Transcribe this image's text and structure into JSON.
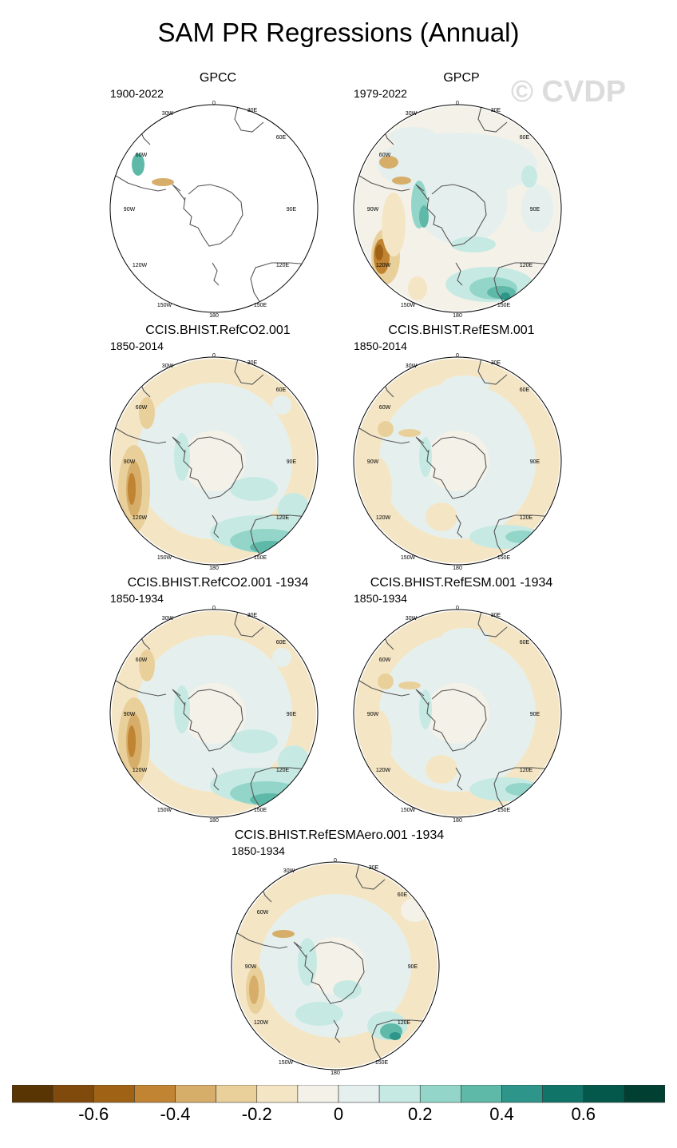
{
  "title": "SAM PR Regressions (Annual)",
  "watermark": "© CVDP",
  "lon_labels": [
    "0",
    "30E",
    "60E",
    "90E",
    "120E",
    "150E",
    "180",
    "150W",
    "120W",
    "90W",
    "60W",
    "30W"
  ],
  "panels": [
    {
      "title": "GPCC",
      "period": "1900-2022",
      "pattern": "land_only"
    },
    {
      "title": "GPCP",
      "period": "1979-2022",
      "pattern": "full"
    },
    {
      "title": "CCIS.BHIST.RefCO2.001",
      "period": "1850-2014",
      "pattern": "model_strong"
    },
    {
      "title": "CCIS.BHIST.RefESM.001",
      "period": "1850-2014",
      "pattern": "model_weak"
    },
    {
      "title": "CCIS.BHIST.RefCO2.001 -1934",
      "period": "1850-1934",
      "pattern": "model_strong"
    },
    {
      "title": "CCIS.BHIST.RefESM.001 -1934",
      "period": "1850-1934",
      "pattern": "model_weak"
    },
    {
      "title": "CCIS.BHIST.RefESMAero.001 -1934",
      "period": "1850-1934",
      "pattern": "aero"
    }
  ],
  "colorbar": {
    "colors": [
      "#5a3504",
      "#7f4a0b",
      "#a06315",
      "#c08433",
      "#d6ae6a",
      "#e9d09b",
      "#f4e6c5",
      "#f4f1e8",
      "#e5f0ee",
      "#c6eae3",
      "#93d6c9",
      "#5fb9a9",
      "#2d958a",
      "#107568",
      "#04584b",
      "#013f33"
    ],
    "tick_labels": [
      "-0.6",
      "-0.4",
      "-0.2",
      "0",
      "0.2",
      "0.4",
      "0.6"
    ],
    "tick_values": [
      -0.6,
      -0.4,
      -0.2,
      0,
      0.2,
      0.4,
      0.6
    ],
    "min": -0.8,
    "max": 0.8
  }
}
